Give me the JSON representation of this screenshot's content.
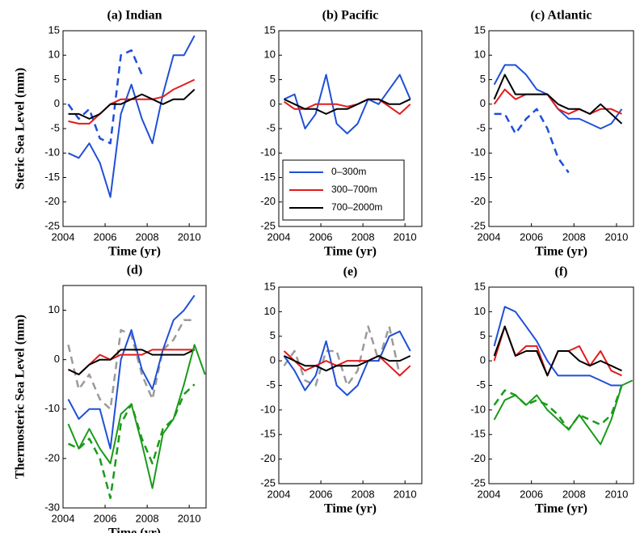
{
  "chart_data": [
    {
      "type": "line",
      "title": "(a) Indian",
      "ylabel": "Steric Sea Level (mm)",
      "xlabel": "Time (yr)",
      "x": [
        2004.25,
        2004.75,
        2005.25,
        2005.75,
        2006.25,
        2006.75,
        2007.25,
        2007.75,
        2008.25,
        2008.75,
        2009.25,
        2009.75,
        2010.25,
        2010.75
      ],
      "xlim": [
        2004,
        2010.8
      ],
      "xticks": [
        2004,
        2006,
        2008,
        2010
      ],
      "ylim": [
        -25,
        15
      ],
      "yticks": [
        -25,
        -20,
        -15,
        -10,
        -5,
        0,
        5,
        10,
        15
      ],
      "series": [
        {
          "color": "#1f4fd8",
          "values": [
            -10,
            -11,
            -8,
            -12,
            -19,
            -2,
            4,
            -3,
            -8,
            2,
            10,
            10,
            14,
            null
          ]
        },
        {
          "color": "#1f4fd8",
          "style": "dashed",
          "values": [
            0,
            -3,
            -1,
            -7,
            -8,
            10,
            11,
            6,
            null,
            null,
            null,
            null,
            null,
            null
          ]
        },
        {
          "color": "#e41a1c",
          "values": [
            -3.5,
            -4,
            -4,
            -2,
            0,
            1,
            1,
            1,
            1,
            1.5,
            3,
            4,
            5,
            null
          ]
        },
        {
          "color": "#000000",
          "values": [
            -2,
            -2,
            -3,
            -2,
            0,
            0,
            1,
            2,
            1,
            0,
            1,
            1,
            3,
            null
          ]
        }
      ]
    },
    {
      "type": "line",
      "title": "(b) Pacific",
      "xlabel": "Time (yr)",
      "x": [
        2004.25,
        2004.75,
        2005.25,
        2005.75,
        2006.25,
        2006.75,
        2007.25,
        2007.75,
        2008.25,
        2008.75,
        2009.25,
        2009.75,
        2010.25,
        2010.75
      ],
      "xlim": [
        2004,
        2010.8
      ],
      "xticks": [
        2004,
        2006,
        2008,
        2010
      ],
      "ylim": [
        -25,
        15
      ],
      "yticks": [
        -25,
        -20,
        -15,
        -10,
        -5,
        0,
        5,
        10,
        15
      ],
      "legend": "lower right",
      "series": [
        {
          "name": "0–300m",
          "color": "#1f4fd8",
          "values": [
            1,
            2,
            -5,
            -2,
            6,
            -4,
            -6,
            -4,
            1,
            0,
            3,
            6,
            1,
            null
          ]
        },
        {
          "name": "300–700m",
          "color": "#e41a1c",
          "values": [
            0.5,
            -1,
            -1,
            0,
            0,
            0,
            -0.5,
            0,
            1,
            1,
            -0.5,
            -2,
            0,
            null
          ]
        },
        {
          "name": "700–2000m",
          "color": "#000000",
          "values": [
            1,
            0,
            -1,
            -1,
            -2,
            -1,
            -1,
            0,
            1,
            1,
            0,
            0,
            1,
            null
          ]
        }
      ]
    },
    {
      "type": "line",
      "title": "(c) Atlantic",
      "xlabel": "Time (yr)",
      "x": [
        2004.25,
        2004.75,
        2005.25,
        2005.75,
        2006.25,
        2006.75,
        2007.25,
        2007.75,
        2008.25,
        2008.75,
        2009.25,
        2009.75,
        2010.25,
        2010.75
      ],
      "xlim": [
        2004,
        2010.8
      ],
      "xticks": [
        2004,
        2006,
        2008,
        2010
      ],
      "ylim": [
        -25,
        15
      ],
      "yticks": [
        -25,
        -20,
        -15,
        -10,
        -5,
        0,
        5,
        10,
        15
      ],
      "series": [
        {
          "color": "#1f4fd8",
          "values": [
            4,
            8,
            8,
            6,
            3,
            2,
            -1,
            -3,
            -3,
            -4,
            -5,
            -4,
            -1,
            null
          ]
        },
        {
          "color": "#1f4fd8",
          "style": "dashed",
          "values": [
            -2,
            -2,
            -6,
            -3,
            -1,
            -5,
            -11,
            -14,
            null,
            null,
            null,
            null,
            null,
            null
          ]
        },
        {
          "color": "#e41a1c",
          "values": [
            0,
            3,
            1,
            2,
            2,
            2,
            -1,
            -2,
            -1,
            -2,
            -1,
            -1,
            -2,
            null
          ]
        },
        {
          "color": "#000000",
          "values": [
            1,
            6,
            2,
            2,
            2,
            2,
            0,
            -1,
            -1,
            -2,
            0,
            -2,
            -4,
            null
          ]
        }
      ]
    },
    {
      "type": "line",
      "title": "(d)",
      "ylabel": "Thermosteric Sea Level (mm)",
      "xlabel": "Time (yr)",
      "x": [
        2004.25,
        2004.75,
        2005.25,
        2005.75,
        2006.25,
        2006.75,
        2007.25,
        2007.75,
        2008.25,
        2008.75,
        2009.25,
        2009.75,
        2010.25,
        2010.75
      ],
      "xlim": [
        2004,
        2010.8
      ],
      "xticks": [
        2004,
        2006,
        2008,
        2010
      ],
      "ylim": [
        -30,
        15
      ],
      "yticks": [
        -30,
        -20,
        -10,
        0,
        10
      ],
      "series": [
        {
          "color": "#9a9a9a",
          "style": "dashed",
          "values": [
            3,
            -6,
            -3,
            -8,
            -10,
            6,
            5,
            -3,
            -8,
            2,
            4,
            8,
            8,
            null
          ]
        },
        {
          "color": "#1f4fd8",
          "values": [
            -8,
            -12,
            -10,
            -10,
            -18,
            0,
            6,
            -2,
            -6,
            2,
            8,
            10,
            13,
            null
          ]
        },
        {
          "color": "#e41a1c",
          "values": [
            -2,
            -3,
            -1,
            1,
            0,
            1,
            1,
            1,
            2,
            2,
            2,
            2,
            2,
            null
          ]
        },
        {
          "color": "#000000",
          "values": [
            -2,
            -3,
            -1,
            0,
            0,
            2,
            2,
            2,
            1,
            1,
            1,
            1,
            2,
            null
          ]
        },
        {
          "color": "#1a9a1a",
          "values": [
            -13,
            -18,
            -14,
            -18,
            -21,
            -11,
            -9,
            -17,
            -26,
            -15,
            -12,
            -5,
            3,
            -3
          ]
        },
        {
          "color": "#1a9a1a",
          "style": "dashed",
          "values": [
            -17,
            -18,
            -16,
            -20,
            -28,
            -13,
            -9,
            -16,
            -21,
            -14,
            -12,
            -7,
            -5,
            null
          ]
        }
      ]
    },
    {
      "type": "line",
      "title": "(e)",
      "xlabel": "Time (yr)",
      "x": [
        2004.25,
        2004.75,
        2005.25,
        2005.75,
        2006.25,
        2006.75,
        2007.25,
        2007.75,
        2008.25,
        2008.75,
        2009.25,
        2009.75,
        2010.25,
        2010.75
      ],
      "xlim": [
        2004,
        2010.8
      ],
      "xticks": [
        2004,
        2006,
        2008,
        2010
      ],
      "ylim": [
        -25,
        15
      ],
      "yticks": [
        -25,
        -20,
        -15,
        -10,
        -5,
        0,
        5,
        10,
        15
      ],
      "series": [
        {
          "color": "#9a9a9a",
          "style": "dashed",
          "values": [
            -1,
            2,
            -4,
            -5,
            2,
            2,
            -5,
            -2,
            7,
            0,
            7,
            -3,
            null,
            null
          ]
        },
        {
          "color": "#1f4fd8",
          "values": [
            1,
            -2,
            -6,
            -3,
            4,
            -5,
            -7,
            -5,
            0,
            0,
            5,
            6,
            2,
            null
          ]
        },
        {
          "color": "#e41a1c",
          "values": [
            2,
            0,
            -2,
            -1,
            0,
            -1,
            0,
            0,
            0,
            1,
            -1,
            -3,
            -1,
            null
          ]
        },
        {
          "color": "#000000",
          "values": [
            1,
            0,
            -1,
            -1,
            -2,
            -1,
            -1,
            -1,
            0,
            1,
            0,
            0,
            1,
            null
          ]
        }
      ]
    },
    {
      "type": "line",
      "title": "(f)",
      "xlabel": "Time (yr)",
      "x": [
        2004.25,
        2004.75,
        2005.25,
        2005.75,
        2006.25,
        2006.75,
        2007.25,
        2007.75,
        2008.25,
        2008.75,
        2009.25,
        2009.75,
        2010.25,
        2010.75
      ],
      "xlim": [
        2004,
        2010.8
      ],
      "xticks": [
        2004,
        2006,
        2008,
        2010
      ],
      "ylim": [
        -25,
        15
      ],
      "yticks": [
        -25,
        -20,
        -15,
        -10,
        -5,
        0,
        5,
        10,
        15
      ],
      "series": [
        {
          "color": "#1f4fd8",
          "values": [
            3,
            11,
            10,
            7,
            4,
            0,
            -3,
            -3,
            -3,
            -3,
            -4,
            -5,
            -5,
            null
          ]
        },
        {
          "color": "#e41a1c",
          "values": [
            0,
            7,
            1,
            3,
            3,
            -3,
            2,
            2,
            3,
            -1,
            2,
            -2,
            -3,
            null
          ]
        },
        {
          "color": "#000000",
          "values": [
            1,
            7,
            1,
            2,
            2,
            -3,
            2,
            2,
            0,
            -1,
            0,
            -1,
            -2,
            null
          ]
        },
        {
          "color": "#1a9a1a",
          "values": [
            -12,
            -8,
            -7,
            -9,
            -7,
            -10,
            -12,
            -14,
            -11,
            -14,
            -17,
            -12,
            -5,
            -4
          ]
        },
        {
          "color": "#1a9a1a",
          "style": "dashed",
          "values": [
            -9,
            -6,
            -7,
            -9,
            -8,
            -9,
            -11,
            -14,
            -11,
            -12,
            -13,
            -11,
            -5,
            null
          ]
        }
      ]
    }
  ]
}
